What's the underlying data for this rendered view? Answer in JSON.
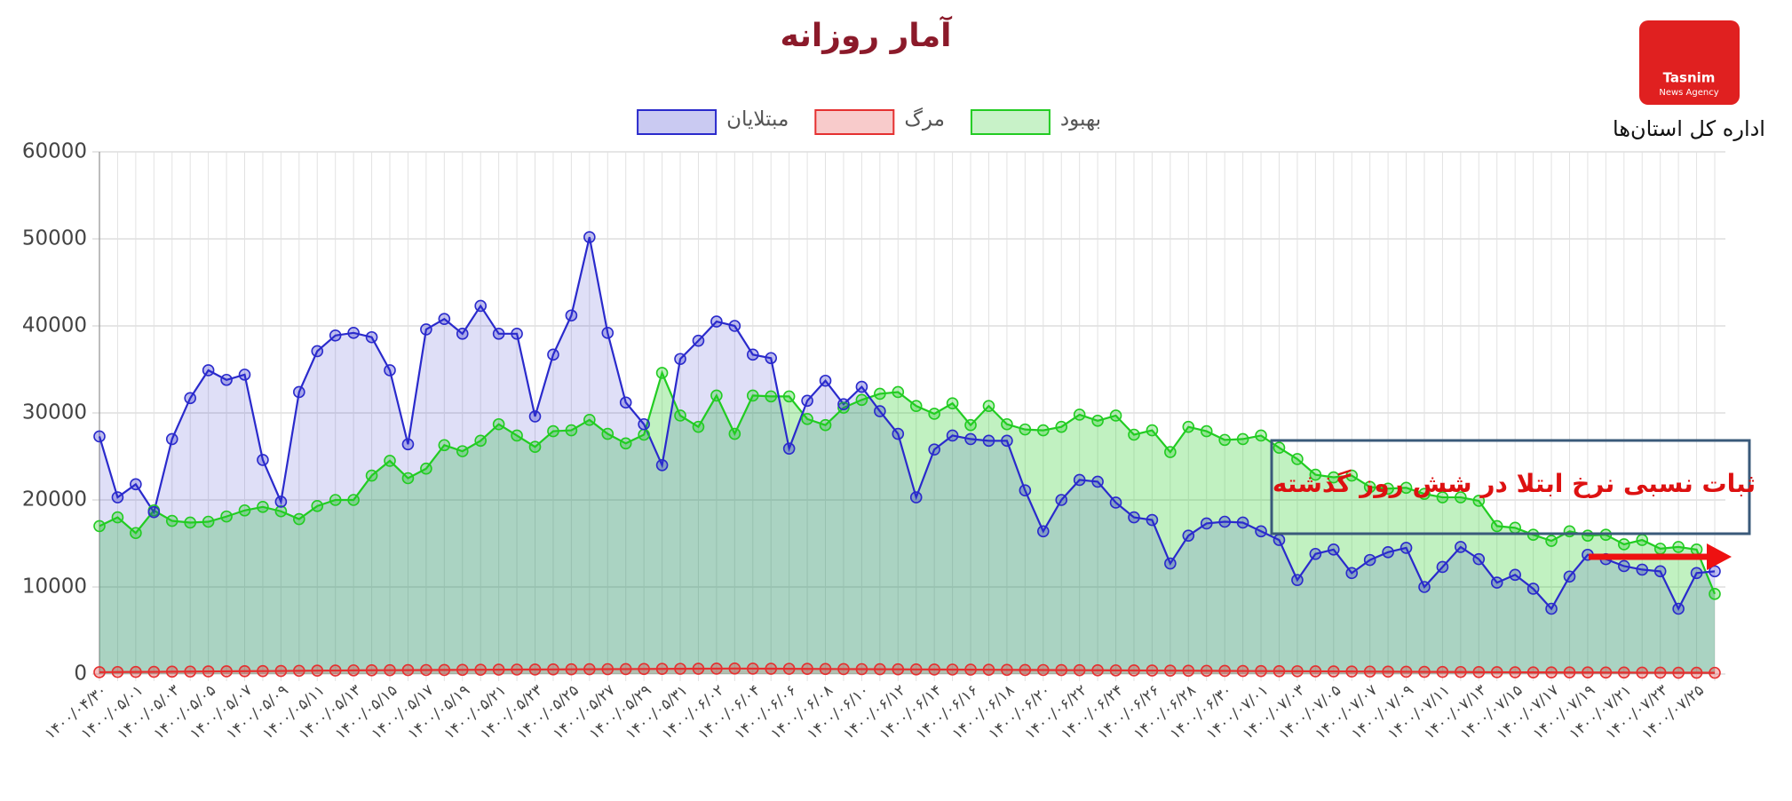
{
  "chart_data": {
    "type": "line",
    "title": "آمار روزانه",
    "annotation": "ثبات نسبی نرخ ابتلا در شش روز گذشته",
    "categories": [
      "۱۴۰۰/۰۴/۳۰",
      null,
      "۱۴۰۰/۰۵/۰۱",
      null,
      "۱۴۰۰/۰۵/۰۳",
      null,
      "۱۴۰۰/۰۵/۰۵",
      null,
      "۱۴۰۰/۰۵/۰۷",
      null,
      "۱۴۰۰/۰۵/۰۹",
      null,
      "۱۴۰۰/۰۵/۱۱",
      null,
      "۱۴۰۰/۰۵/۱۳",
      null,
      "۱۴۰۰/۰۵/۱۵",
      null,
      "۱۴۰۰/۰۵/۱۷",
      null,
      "۱۴۰۰/۰۵/۱۹",
      null,
      "۱۴۰۰/۰۵/۲۱",
      null,
      "۱۴۰۰/۰۵/۲۳",
      null,
      "۱۴۰۰/۰۵/۲۵",
      null,
      "۱۴۰۰/۰۵/۲۷",
      null,
      "۱۴۰۰/۰۵/۲۹",
      null,
      "۱۴۰۰/۰۵/۳۱",
      null,
      "۱۴۰۰/۰۶/۰۲",
      null,
      "۱۴۰۰/۰۶/۰۴",
      null,
      "۱۴۰۰/۰۶/۰۶",
      null,
      "۱۴۰۰/۰۶/۰۸",
      null,
      "۱۴۰۰/۰۶/۱۰",
      null,
      "۱۴۰۰/۰۶/۱۲",
      null,
      "۱۴۰۰/۰۶/۱۴",
      null,
      "۱۴۰۰/۰۶/۱۶",
      null,
      "۱۴۰۰/۰۶/۱۸",
      null,
      "۱۴۰۰/۰۶/۲۰",
      null,
      "۱۴۰۰/۰۶/۲۲",
      null,
      "۱۴۰۰/۰۶/۲۴",
      null,
      "۱۴۰۰/۰۶/۲۶",
      null,
      "۱۴۰۰/۰۶/۲۸",
      null,
      "۱۴۰۰/۰۶/۳۰",
      null,
      "۱۴۰۰/۰۷/۰۱",
      null,
      "۱۴۰۰/۰۷/۰۳",
      null,
      "۱۴۰۰/۰۷/۰۵",
      null,
      "۱۴۰۰/۰۷/۰۷",
      null,
      "۱۴۰۰/۰۷/۰۹",
      null,
      "۱۴۰۰/۰۷/۱۱",
      null,
      "۱۴۰۰/۰۷/۱۳",
      null,
      "۱۴۰۰/۰۷/۱۵",
      null,
      "۱۴۰۰/۰۷/۱۷",
      null,
      "۱۴۰۰/۰۷/۱۹",
      null,
      "۱۴۰۰/۰۷/۲۱",
      null,
      "۱۴۰۰/۰۷/۲۳",
      null,
      "۱۴۰۰/۰۷/۲۵",
      null
    ],
    "series": [
      {
        "name": "بهبود",
        "color": "#22cc22",
        "values": [
          17000,
          18000,
          16200,
          18800,
          17600,
          17400,
          17500,
          18100,
          18800,
          19200,
          18700,
          17800,
          19300,
          20000,
          20000,
          22800,
          24500,
          22500,
          23600,
          26300,
          25600,
          26800,
          28700,
          27400,
          26100,
          27900,
          28000,
          29200,
          27600,
          26500,
          27500,
          34600,
          29700,
          28400,
          32000,
          27600,
          32000,
          31900,
          31900,
          29300,
          28600,
          30600,
          31500,
          32200,
          32400,
          30800,
          29900,
          31100,
          28600,
          30800,
          28700,
          28100,
          28000,
          28400,
          29800,
          29100,
          29700,
          27500,
          28000,
          25500,
          28400,
          27900,
          26900,
          27000,
          27400,
          26000,
          24700,
          22900,
          22600,
          22800,
          21500,
          21300,
          21400,
          20700,
          20300,
          20300,
          19900,
          17000,
          16800,
          16000,
          15300,
          16400,
          15900,
          16000,
          14900,
          15400,
          14400,
          14600,
          14300,
          9200
        ]
      },
      {
        "name": "مرگ",
        "color": "#e53030",
        "values": [
          210,
          230,
          240,
          250,
          270,
          280,
          300,
          310,
          330,
          340,
          350,
          370,
          390,
          400,
          420,
          430,
          440,
          450,
          460,
          470,
          480,
          490,
          500,
          510,
          520,
          530,
          540,
          550,
          560,
          570,
          580,
          590,
          600,
          610,
          620,
          630,
          620,
          610,
          600,
          590,
          580,
          570,
          560,
          550,
          540,
          530,
          520,
          510,
          500,
          490,
          480,
          470,
          460,
          450,
          440,
          430,
          420,
          410,
          400,
          390,
          380,
          370,
          360,
          350,
          340,
          330,
          320,
          310,
          300,
          290,
          280,
          270,
          260,
          250,
          240,
          230,
          220,
          210,
          200,
          190,
          190,
          180,
          180,
          170,
          170,
          160,
          160,
          150,
          150,
          140
        ]
      },
      {
        "name": "مبتلایان",
        "color": "#2a2acc",
        "values": [
          27300,
          20300,
          21800,
          18600,
          27000,
          31700,
          34900,
          33800,
          34400,
          24600,
          19800,
          32400,
          37100,
          38900,
          39200,
          38700,
          34900,
          26400,
          39600,
          40800,
          39100,
          42300,
          39100,
          39100,
          29600,
          36700,
          41200,
          50200,
          39200,
          31200,
          28700,
          24000,
          36200,
          38300,
          40500,
          40000,
          36700,
          36300,
          25900,
          31400,
          33700,
          31000,
          33000,
          30200,
          27600,
          20300,
          25800,
          27400,
          27000,
          26800,
          26800,
          21100,
          16400,
          20000,
          22300,
          22100,
          19700,
          18000,
          17700,
          12700,
          15900,
          17300,
          17500,
          17400,
          16400,
          15400,
          10800,
          13800,
          14300,
          11600,
          13100,
          14000,
          14500,
          10000,
          12300,
          14600,
          13200,
          10500,
          11400,
          9800,
          7500,
          11200,
          13700,
          13200,
          12400,
          12000,
          11800,
          7500,
          11600,
          11800
        ]
      }
    ],
    "ylim": [
      0,
      60000
    ],
    "yticks": [
      0,
      10000,
      20000,
      30000,
      40000,
      50000,
      60000
    ],
    "grid": true
  },
  "logo": {
    "name": "Tasnim",
    "tagline": "News Agency",
    "caption": "اداره کل استان‌ها"
  }
}
